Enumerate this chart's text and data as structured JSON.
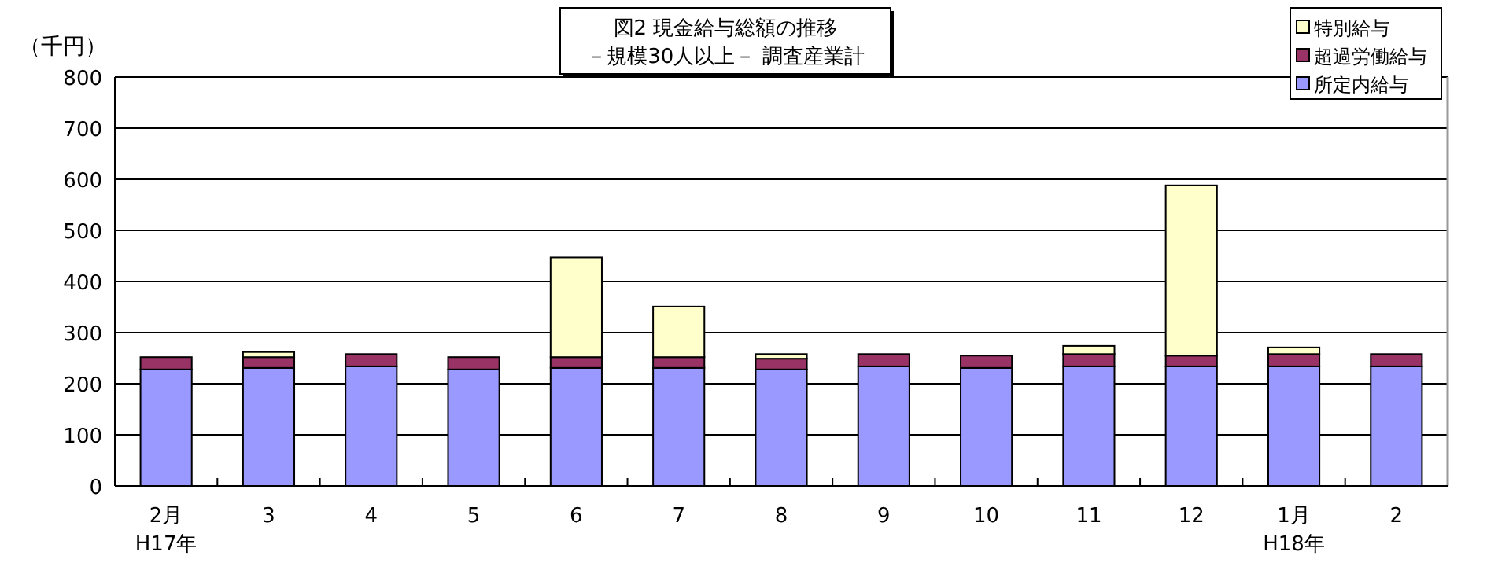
{
  "chart_data": {
    "type": "bar",
    "stacked": true,
    "title": "図2  現金給与総額の推移",
    "subtitle": "－規模30人以上－  調査産業計",
    "ylabel": "（千円）",
    "categories": [
      "2月\nH17年",
      "3",
      "4",
      "5",
      "6",
      "7",
      "8",
      "9",
      "10",
      "11",
      "12",
      "1月\nH18年",
      "2"
    ],
    "series": [
      {
        "name": "所定内給与",
        "color": "#9999ff",
        "values": [
          228,
          231,
          234,
          228,
          231,
          231,
          228,
          234,
          231,
          234,
          234,
          234,
          234
        ]
      },
      {
        "name": "超過労働給与",
        "color": "#993366",
        "values": [
          24,
          21,
          24,
          24,
          21,
          21,
          21,
          24,
          24,
          24,
          21,
          24,
          24
        ]
      },
      {
        "name": "特別給与",
        "color": "#ffffcc",
        "values": [
          0,
          10,
          0,
          0,
          195,
          99,
          9,
          0,
          0,
          16,
          333,
          13,
          0
        ]
      }
    ],
    "ylim": [
      0,
      800
    ],
    "yticks": [
      0,
      100,
      200,
      300,
      400,
      500,
      600,
      700,
      800
    ],
    "grid": "y",
    "legend": "top right"
  }
}
